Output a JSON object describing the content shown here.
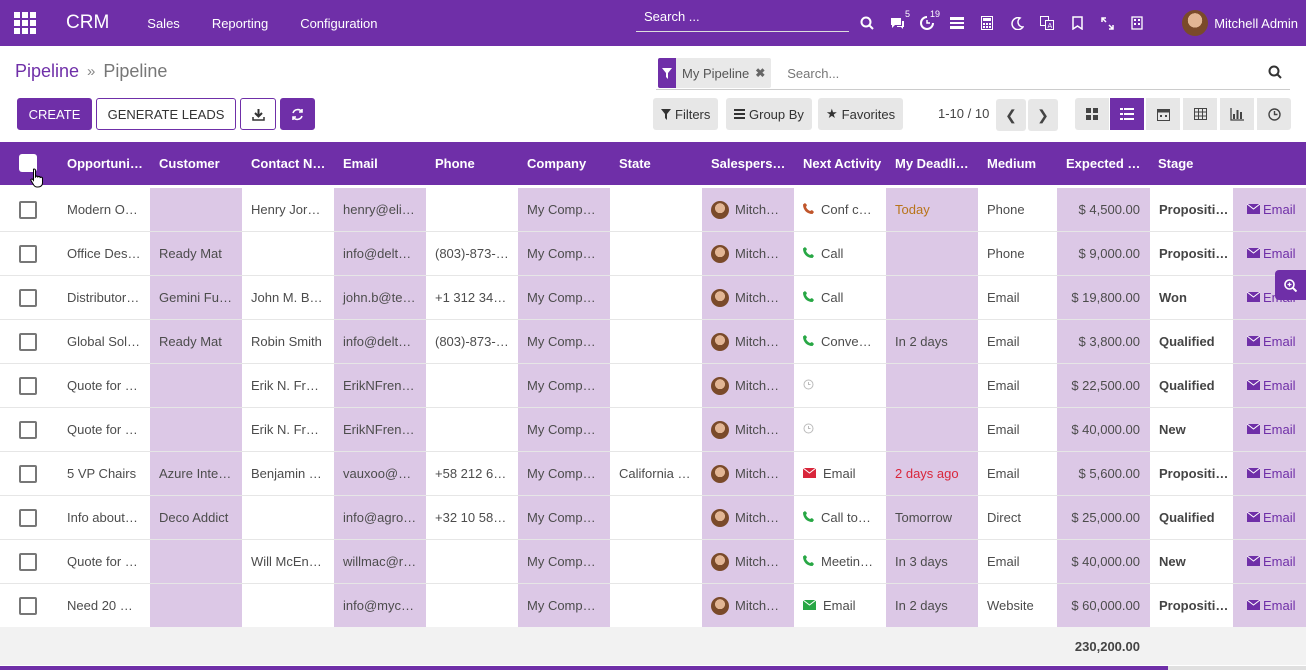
{
  "navbar": {
    "brand": "CRM",
    "menu": [
      "Sales",
      "Reporting",
      "Configuration"
    ],
    "search_placeholder": "Search ...",
    "badges": {
      "messages": "5",
      "activities": "19"
    },
    "user_name": "Mitchell Admin"
  },
  "breadcrumb": {
    "parent": "Pipeline",
    "separator": "»",
    "current": "Pipeline"
  },
  "buttons": {
    "create": "CREATE",
    "generate_leads": "GENERATE LEADS"
  },
  "search": {
    "facet": "My Pipeline",
    "placeholder": "Search..."
  },
  "filters": {
    "filters": "Filters",
    "group_by": "Group By",
    "favorites": "Favorites"
  },
  "pager": {
    "value": "1-10 / 10"
  },
  "columns": [
    "Opportunit…",
    "Customer",
    "Contact N…",
    "Email",
    "Phone",
    "Company",
    "State",
    "Salespers…",
    "Next Activity",
    "My Deadli…",
    "Medium",
    "Expected …",
    "Stage"
  ],
  "rows": [
    {
      "opportunity": "Modern O…",
      "customer": "",
      "contact": "Henry Jor…",
      "email": "henry@eli…",
      "phone": "",
      "company": "My Comp…",
      "state": "",
      "salesperson": "Mitch…",
      "activity": "Conf c…",
      "activity_type": "phone-red",
      "deadline": "Today",
      "deadline_class": "today",
      "medium": "Phone",
      "expected": "$ 4,500.00",
      "stage": "Propositi…",
      "action": "Email"
    },
    {
      "opportunity": "Office Des…",
      "customer": "Ready Mat",
      "contact": "",
      "email": "info@delt…",
      "phone": "(803)-873-…",
      "company": "My Comp…",
      "state": "",
      "salesperson": "Mitch…",
      "activity": "Call",
      "activity_type": "phone-green",
      "deadline": "",
      "deadline_class": "",
      "medium": "Phone",
      "expected": "$ 9,000.00",
      "stage": "Propositi…",
      "action": "Email"
    },
    {
      "opportunity": "Distributor…",
      "customer": "Gemini Fu…",
      "contact": "John M. B…",
      "email": "john.b@te…",
      "phone": "+1 312 34…",
      "company": "My Comp…",
      "state": "",
      "salesperson": "Mitch…",
      "activity": "Call",
      "activity_type": "phone-green",
      "deadline": "",
      "deadline_class": "",
      "medium": "Email",
      "expected": "$ 19,800.00",
      "stage": "Won",
      "action": "Email"
    },
    {
      "opportunity": "Global Sol…",
      "customer": "Ready Mat",
      "contact": "Robin Smith",
      "email": "info@delt…",
      "phone": "(803)-873-…",
      "company": "My Comp…",
      "state": "",
      "salesperson": "Mitch…",
      "activity": "Conve…",
      "activity_type": "phone-green",
      "deadline": "In 2 days",
      "deadline_class": "",
      "medium": "Email",
      "expected": "$ 3,800.00",
      "stage": "Qualified",
      "action": "Email"
    },
    {
      "opportunity": "Quote for …",
      "customer": "",
      "contact": "Erik N. Fr…",
      "email": "ErikNFren…",
      "phone": "",
      "company": "My Comp…",
      "state": "",
      "salesperson": "Mitch…",
      "activity": "",
      "activity_type": "clock",
      "deadline": "",
      "deadline_class": "",
      "medium": "Email",
      "expected": "$ 22,500.00",
      "stage": "Qualified",
      "action": "Email"
    },
    {
      "opportunity": "Quote for …",
      "customer": "",
      "contact": "Erik N. Fr…",
      "email": "ErikNFren…",
      "phone": "",
      "company": "My Comp…",
      "state": "",
      "salesperson": "Mitch…",
      "activity": "",
      "activity_type": "clock",
      "deadline": "",
      "deadline_class": "",
      "medium": "Email",
      "expected": "$ 40,000.00",
      "stage": "New",
      "action": "Email"
    },
    {
      "opportunity": "5 VP Chairs",
      "customer": "Azure Inte…",
      "contact": "Benjamin …",
      "email": "vauxoo@…",
      "phone": "+58 212 6…",
      "company": "My Comp…",
      "state": "California …",
      "salesperson": "Mitch…",
      "activity": "Email",
      "activity_type": "mail-red",
      "deadline": "2 days ago",
      "deadline_class": "late",
      "medium": "Email",
      "expected": "$ 5,600.00",
      "stage": "Propositi…",
      "action": "Email"
    },
    {
      "opportunity": "Info about…",
      "customer": "Deco Addict",
      "contact": "",
      "email": "info@agro…",
      "phone": "+32 10 58…",
      "company": "My Comp…",
      "state": "",
      "salesperson": "Mitch…",
      "activity": "Call to…",
      "activity_type": "phone-green",
      "deadline": "Tomorrow",
      "deadline_class": "",
      "medium": "Direct",
      "expected": "$ 25,000.00",
      "stage": "Qualified",
      "action": "Email"
    },
    {
      "opportunity": "Quote for …",
      "customer": "",
      "contact": "Will McEn…",
      "email": "willmac@r…",
      "phone": "",
      "company": "My Comp…",
      "state": "",
      "salesperson": "Mitch…",
      "activity": "Meetin…",
      "activity_type": "phone-green",
      "deadline": "In 3 days",
      "deadline_class": "",
      "medium": "Email",
      "expected": "$ 40,000.00",
      "stage": "New",
      "action": "Email"
    },
    {
      "opportunity": "Need 20 …",
      "customer": "",
      "contact": "",
      "email": "info@myc…",
      "phone": "",
      "company": "My Comp…",
      "state": "",
      "salesperson": "Mitch…",
      "activity": "Email",
      "activity_type": "mail-green",
      "deadline": "In 2 days",
      "deadline_class": "",
      "medium": "Website",
      "expected": "$ 60,000.00",
      "stage": "Propositi…",
      "action": "Email"
    }
  ],
  "total": "230,200.00",
  "colors": {
    "brand": "#6f2fa8",
    "shade": "#dcc8e6"
  }
}
